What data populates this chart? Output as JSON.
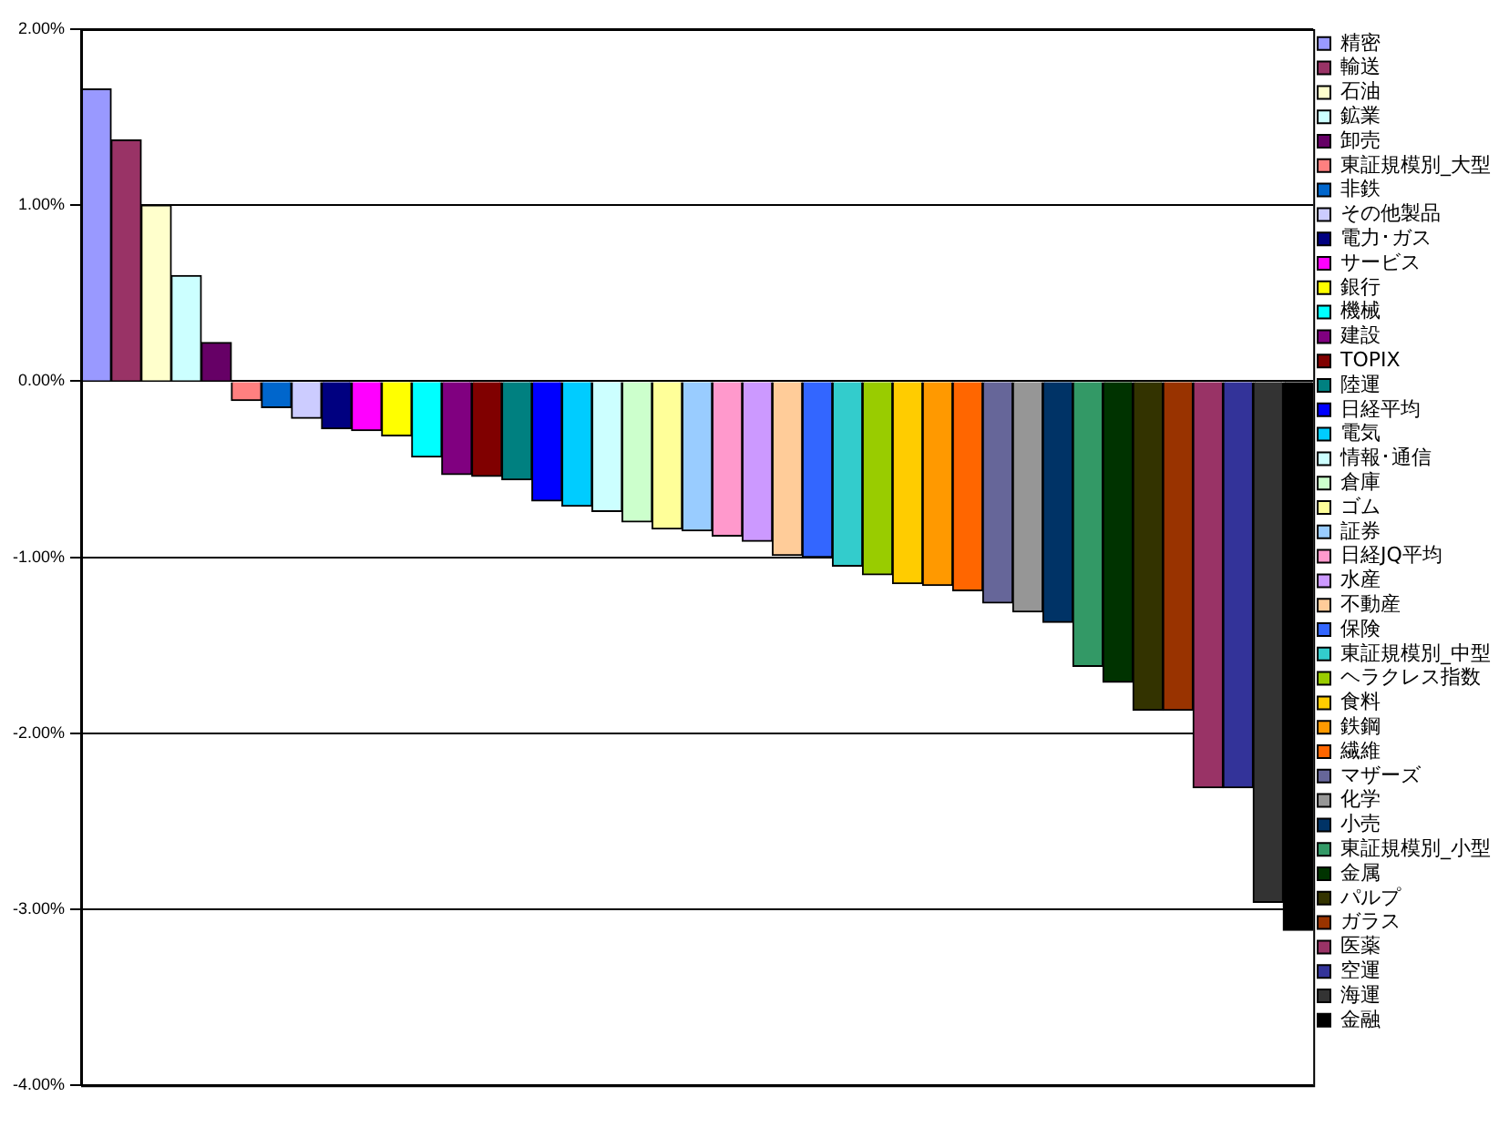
{
  "chart_data": {
    "type": "bar",
    "categories": [
      null,
      null,
      null,
      null,
      null,
      null,
      null,
      null,
      null,
      null,
      null,
      null,
      null,
      null,
      null,
      null,
      null,
      null,
      null,
      null,
      null,
      null,
      null,
      null,
      null,
      null,
      null,
      null,
      null,
      null,
      null,
      null,
      null,
      null,
      null,
      null,
      null,
      null,
      null,
      null,
      null
    ],
    "ylim": [
      -4,
      2
    ],
    "yticks": [
      {
        "value": -4,
        "label": "-4.00%"
      },
      {
        "value": -3,
        "label": "-3.00%"
      },
      {
        "value": -2,
        "label": "-2.00%"
      },
      {
        "value": -1,
        "label": "-1.00%"
      },
      {
        "value": 0,
        "label": "0.00%"
      },
      {
        "value": 1,
        "label": "1.00%"
      },
      {
        "value": 2,
        "label": "2.00%"
      }
    ],
    "grid": "y",
    "legend": "right",
    "series": [
      {
        "name": "精密",
        "color": "#9999ff",
        "values": [
          1.66,
          null,
          null,
          null,
          null,
          null,
          null,
          null,
          null,
          null,
          null,
          null,
          null,
          null,
          null,
          null,
          null,
          null,
          null,
          null,
          null,
          null,
          null,
          null,
          null,
          null,
          null,
          null,
          null,
          null,
          null,
          null,
          null,
          null,
          null,
          null,
          null,
          null,
          null,
          null,
          null
        ]
      },
      {
        "name": "輸送",
        "color": "#993366",
        "values": [
          null,
          1.37,
          null,
          null,
          null,
          null,
          null,
          null,
          null,
          null,
          null,
          null,
          null,
          null,
          null,
          null,
          null,
          null,
          null,
          null,
          null,
          null,
          null,
          null,
          null,
          null,
          null,
          null,
          null,
          null,
          null,
          null,
          null,
          null,
          null,
          null,
          null,
          null,
          null,
          null,
          null
        ]
      },
      {
        "name": "石油",
        "color": "#ffffcc",
        "values": [
          null,
          null,
          1.0,
          null,
          null,
          null,
          null,
          null,
          null,
          null,
          null,
          null,
          null,
          null,
          null,
          null,
          null,
          null,
          null,
          null,
          null,
          null,
          null,
          null,
          null,
          null,
          null,
          null,
          null,
          null,
          null,
          null,
          null,
          null,
          null,
          null,
          null,
          null,
          null,
          null,
          null
        ]
      },
      {
        "name": "鉱業",
        "color": "#ccffff",
        "values": [
          null,
          null,
          null,
          0.6,
          null,
          null,
          null,
          null,
          null,
          null,
          null,
          null,
          null,
          null,
          null,
          null,
          null,
          null,
          null,
          null,
          null,
          null,
          null,
          null,
          null,
          null,
          null,
          null,
          null,
          null,
          null,
          null,
          null,
          null,
          null,
          null,
          null,
          null,
          null,
          null,
          null
        ]
      },
      {
        "name": "卸売",
        "color": "#660066",
        "values": [
          null,
          null,
          null,
          null,
          0.22,
          null,
          null,
          null,
          null,
          null,
          null,
          null,
          null,
          null,
          null,
          null,
          null,
          null,
          null,
          null,
          null,
          null,
          null,
          null,
          null,
          null,
          null,
          null,
          null,
          null,
          null,
          null,
          null,
          null,
          null,
          null,
          null,
          null,
          null,
          null,
          null
        ]
      },
      {
        "name": "東証規模別_大型",
        "color": "#ff8080",
        "values": [
          null,
          null,
          null,
          null,
          null,
          -0.11,
          null,
          null,
          null,
          null,
          null,
          null,
          null,
          null,
          null,
          null,
          null,
          null,
          null,
          null,
          null,
          null,
          null,
          null,
          null,
          null,
          null,
          null,
          null,
          null,
          null,
          null,
          null,
          null,
          null,
          null,
          null,
          null,
          null,
          null,
          null
        ]
      },
      {
        "name": "非鉄",
        "color": "#0066cc",
        "values": [
          null,
          null,
          null,
          null,
          null,
          null,
          -0.15,
          null,
          null,
          null,
          null,
          null,
          null,
          null,
          null,
          null,
          null,
          null,
          null,
          null,
          null,
          null,
          null,
          null,
          null,
          null,
          null,
          null,
          null,
          null,
          null,
          null,
          null,
          null,
          null,
          null,
          null,
          null,
          null,
          null,
          null
        ]
      },
      {
        "name": "その他製品",
        "color": "#ccccff",
        "values": [
          null,
          null,
          null,
          null,
          null,
          null,
          null,
          -0.21,
          null,
          null,
          null,
          null,
          null,
          null,
          null,
          null,
          null,
          null,
          null,
          null,
          null,
          null,
          null,
          null,
          null,
          null,
          null,
          null,
          null,
          null,
          null,
          null,
          null,
          null,
          null,
          null,
          null,
          null,
          null,
          null,
          null
        ]
      },
      {
        "name": "電力･ガス",
        "color": "#000080",
        "values": [
          null,
          null,
          null,
          null,
          null,
          null,
          null,
          null,
          -0.27,
          null,
          null,
          null,
          null,
          null,
          null,
          null,
          null,
          null,
          null,
          null,
          null,
          null,
          null,
          null,
          null,
          null,
          null,
          null,
          null,
          null,
          null,
          null,
          null,
          null,
          null,
          null,
          null,
          null,
          null,
          null,
          null
        ]
      },
      {
        "name": "サービス",
        "color": "#ff00ff",
        "values": [
          null,
          null,
          null,
          null,
          null,
          null,
          null,
          null,
          null,
          -0.28,
          null,
          null,
          null,
          null,
          null,
          null,
          null,
          null,
          null,
          null,
          null,
          null,
          null,
          null,
          null,
          null,
          null,
          null,
          null,
          null,
          null,
          null,
          null,
          null,
          null,
          null,
          null,
          null,
          null,
          null,
          null
        ]
      },
      {
        "name": "銀行",
        "color": "#ffff00",
        "values": [
          null,
          null,
          null,
          null,
          null,
          null,
          null,
          null,
          null,
          null,
          -0.31,
          null,
          null,
          null,
          null,
          null,
          null,
          null,
          null,
          null,
          null,
          null,
          null,
          null,
          null,
          null,
          null,
          null,
          null,
          null,
          null,
          null,
          null,
          null,
          null,
          null,
          null,
          null,
          null,
          null,
          null
        ]
      },
      {
        "name": "機械",
        "color": "#00ffff",
        "values": [
          null,
          null,
          null,
          null,
          null,
          null,
          null,
          null,
          null,
          null,
          null,
          -0.43,
          null,
          null,
          null,
          null,
          null,
          null,
          null,
          null,
          null,
          null,
          null,
          null,
          null,
          null,
          null,
          null,
          null,
          null,
          null,
          null,
          null,
          null,
          null,
          null,
          null,
          null,
          null,
          null,
          null
        ]
      },
      {
        "name": "建設",
        "color": "#800080",
        "values": [
          null,
          null,
          null,
          null,
          null,
          null,
          null,
          null,
          null,
          null,
          null,
          null,
          -0.53,
          null,
          null,
          null,
          null,
          null,
          null,
          null,
          null,
          null,
          null,
          null,
          null,
          null,
          null,
          null,
          null,
          null,
          null,
          null,
          null,
          null,
          null,
          null,
          null,
          null,
          null,
          null,
          null
        ]
      },
      {
        "name": "TOPIX",
        "color": "#800000",
        "values": [
          null,
          null,
          null,
          null,
          null,
          null,
          null,
          null,
          null,
          null,
          null,
          null,
          null,
          -0.54,
          null,
          null,
          null,
          null,
          null,
          null,
          null,
          null,
          null,
          null,
          null,
          null,
          null,
          null,
          null,
          null,
          null,
          null,
          null,
          null,
          null,
          null,
          null,
          null,
          null,
          null,
          null
        ]
      },
      {
        "name": "陸運",
        "color": "#008080",
        "values": [
          null,
          null,
          null,
          null,
          null,
          null,
          null,
          null,
          null,
          null,
          null,
          null,
          null,
          null,
          -0.56,
          null,
          null,
          null,
          null,
          null,
          null,
          null,
          null,
          null,
          null,
          null,
          null,
          null,
          null,
          null,
          null,
          null,
          null,
          null,
          null,
          null,
          null,
          null,
          null,
          null,
          null
        ]
      },
      {
        "name": "日経平均",
        "color": "#0000ff",
        "values": [
          null,
          null,
          null,
          null,
          null,
          null,
          null,
          null,
          null,
          null,
          null,
          null,
          null,
          null,
          null,
          -0.68,
          null,
          null,
          null,
          null,
          null,
          null,
          null,
          null,
          null,
          null,
          null,
          null,
          null,
          null,
          null,
          null,
          null,
          null,
          null,
          null,
          null,
          null,
          null,
          null,
          null
        ]
      },
      {
        "name": "電気",
        "color": "#00ccff",
        "values": [
          null,
          null,
          null,
          null,
          null,
          null,
          null,
          null,
          null,
          null,
          null,
          null,
          null,
          null,
          null,
          null,
          -0.71,
          null,
          null,
          null,
          null,
          null,
          null,
          null,
          null,
          null,
          null,
          null,
          null,
          null,
          null,
          null,
          null,
          null,
          null,
          null,
          null,
          null,
          null,
          null,
          null
        ]
      },
      {
        "name": "情報･通信",
        "color": "#ccffff",
        "values": [
          null,
          null,
          null,
          null,
          null,
          null,
          null,
          null,
          null,
          null,
          null,
          null,
          null,
          null,
          null,
          null,
          null,
          -0.74,
          null,
          null,
          null,
          null,
          null,
          null,
          null,
          null,
          null,
          null,
          null,
          null,
          null,
          null,
          null,
          null,
          null,
          null,
          null,
          null,
          null,
          null,
          null
        ]
      },
      {
        "name": "倉庫",
        "color": "#ccffcc",
        "values": [
          null,
          null,
          null,
          null,
          null,
          null,
          null,
          null,
          null,
          null,
          null,
          null,
          null,
          null,
          null,
          null,
          null,
          null,
          -0.8,
          null,
          null,
          null,
          null,
          null,
          null,
          null,
          null,
          null,
          null,
          null,
          null,
          null,
          null,
          null,
          null,
          null,
          null,
          null,
          null,
          null,
          null
        ]
      },
      {
        "name": "ゴム",
        "color": "#ffff99",
        "values": [
          null,
          null,
          null,
          null,
          null,
          null,
          null,
          null,
          null,
          null,
          null,
          null,
          null,
          null,
          null,
          null,
          null,
          null,
          null,
          -0.84,
          null,
          null,
          null,
          null,
          null,
          null,
          null,
          null,
          null,
          null,
          null,
          null,
          null,
          null,
          null,
          null,
          null,
          null,
          null,
          null,
          null
        ]
      },
      {
        "name": "証券",
        "color": "#99ccff",
        "values": [
          null,
          null,
          null,
          null,
          null,
          null,
          null,
          null,
          null,
          null,
          null,
          null,
          null,
          null,
          null,
          null,
          null,
          null,
          null,
          null,
          -0.85,
          null,
          null,
          null,
          null,
          null,
          null,
          null,
          null,
          null,
          null,
          null,
          null,
          null,
          null,
          null,
          null,
          null,
          null,
          null,
          null
        ]
      },
      {
        "name": "日経JQ平均",
        "color": "#ff99cc",
        "values": [
          null,
          null,
          null,
          null,
          null,
          null,
          null,
          null,
          null,
          null,
          null,
          null,
          null,
          null,
          null,
          null,
          null,
          null,
          null,
          null,
          null,
          -0.88,
          null,
          null,
          null,
          null,
          null,
          null,
          null,
          null,
          null,
          null,
          null,
          null,
          null,
          null,
          null,
          null,
          null,
          null,
          null
        ]
      },
      {
        "name": "水産",
        "color": "#cc99ff",
        "values": [
          null,
          null,
          null,
          null,
          null,
          null,
          null,
          null,
          null,
          null,
          null,
          null,
          null,
          null,
          null,
          null,
          null,
          null,
          null,
          null,
          null,
          null,
          -0.91,
          null,
          null,
          null,
          null,
          null,
          null,
          null,
          null,
          null,
          null,
          null,
          null,
          null,
          null,
          null,
          null,
          null,
          null
        ]
      },
      {
        "name": "不動産",
        "color": "#ffcc99",
        "values": [
          null,
          null,
          null,
          null,
          null,
          null,
          null,
          null,
          null,
          null,
          null,
          null,
          null,
          null,
          null,
          null,
          null,
          null,
          null,
          null,
          null,
          null,
          null,
          -0.99,
          null,
          null,
          null,
          null,
          null,
          null,
          null,
          null,
          null,
          null,
          null,
          null,
          null,
          null,
          null,
          null,
          null
        ]
      },
      {
        "name": "保険",
        "color": "#3366ff",
        "values": [
          null,
          null,
          null,
          null,
          null,
          null,
          null,
          null,
          null,
          null,
          null,
          null,
          null,
          null,
          null,
          null,
          null,
          null,
          null,
          null,
          null,
          null,
          null,
          null,
          -1.0,
          null,
          null,
          null,
          null,
          null,
          null,
          null,
          null,
          null,
          null,
          null,
          null,
          null,
          null,
          null,
          null
        ]
      },
      {
        "name": "東証規模別_中型",
        "color": "#33cccc",
        "values": [
          null,
          null,
          null,
          null,
          null,
          null,
          null,
          null,
          null,
          null,
          null,
          null,
          null,
          null,
          null,
          null,
          null,
          null,
          null,
          null,
          null,
          null,
          null,
          null,
          null,
          -1.05,
          null,
          null,
          null,
          null,
          null,
          null,
          null,
          null,
          null,
          null,
          null,
          null,
          null,
          null,
          null
        ]
      },
      {
        "name": "ヘラクレス指数",
        "color": "#99cc00",
        "values": [
          null,
          null,
          null,
          null,
          null,
          null,
          null,
          null,
          null,
          null,
          null,
          null,
          null,
          null,
          null,
          null,
          null,
          null,
          null,
          null,
          null,
          null,
          null,
          null,
          null,
          null,
          -1.1,
          null,
          null,
          null,
          null,
          null,
          null,
          null,
          null,
          null,
          null,
          null,
          null,
          null,
          null
        ]
      },
      {
        "name": "食料",
        "color": "#ffcc00",
        "values": [
          null,
          null,
          null,
          null,
          null,
          null,
          null,
          null,
          null,
          null,
          null,
          null,
          null,
          null,
          null,
          null,
          null,
          null,
          null,
          null,
          null,
          null,
          null,
          null,
          null,
          null,
          null,
          -1.15,
          null,
          null,
          null,
          null,
          null,
          null,
          null,
          null,
          null,
          null,
          null,
          null,
          null
        ]
      },
      {
        "name": "鉄鋼",
        "color": "#ff9900",
        "values": [
          null,
          null,
          null,
          null,
          null,
          null,
          null,
          null,
          null,
          null,
          null,
          null,
          null,
          null,
          null,
          null,
          null,
          null,
          null,
          null,
          null,
          null,
          null,
          null,
          null,
          null,
          null,
          null,
          -1.16,
          null,
          null,
          null,
          null,
          null,
          null,
          null,
          null,
          null,
          null,
          null,
          null
        ]
      },
      {
        "name": "繊維",
        "color": "#ff6600",
        "values": [
          null,
          null,
          null,
          null,
          null,
          null,
          null,
          null,
          null,
          null,
          null,
          null,
          null,
          null,
          null,
          null,
          null,
          null,
          null,
          null,
          null,
          null,
          null,
          null,
          null,
          null,
          null,
          null,
          null,
          -1.19,
          null,
          null,
          null,
          null,
          null,
          null,
          null,
          null,
          null,
          null,
          null
        ]
      },
      {
        "name": "マザーズ",
        "color": "#666699",
        "values": [
          null,
          null,
          null,
          null,
          null,
          null,
          null,
          null,
          null,
          null,
          null,
          null,
          null,
          null,
          null,
          null,
          null,
          null,
          null,
          null,
          null,
          null,
          null,
          null,
          null,
          null,
          null,
          null,
          null,
          null,
          -1.26,
          null,
          null,
          null,
          null,
          null,
          null,
          null,
          null,
          null,
          null
        ]
      },
      {
        "name": "化学",
        "color": "#969696",
        "values": [
          null,
          null,
          null,
          null,
          null,
          null,
          null,
          null,
          null,
          null,
          null,
          null,
          null,
          null,
          null,
          null,
          null,
          null,
          null,
          null,
          null,
          null,
          null,
          null,
          null,
          null,
          null,
          null,
          null,
          null,
          null,
          -1.31,
          null,
          null,
          null,
          null,
          null,
          null,
          null,
          null,
          null
        ]
      },
      {
        "name": "小売",
        "color": "#003366",
        "values": [
          null,
          null,
          null,
          null,
          null,
          null,
          null,
          null,
          null,
          null,
          null,
          null,
          null,
          null,
          null,
          null,
          null,
          null,
          null,
          null,
          null,
          null,
          null,
          null,
          null,
          null,
          null,
          null,
          null,
          null,
          null,
          null,
          -1.37,
          null,
          null,
          null,
          null,
          null,
          null,
          null,
          null
        ]
      },
      {
        "name": "東証規模別_小型",
        "color": "#339966",
        "values": [
          null,
          null,
          null,
          null,
          null,
          null,
          null,
          null,
          null,
          null,
          null,
          null,
          null,
          null,
          null,
          null,
          null,
          null,
          null,
          null,
          null,
          null,
          null,
          null,
          null,
          null,
          null,
          null,
          null,
          null,
          null,
          null,
          null,
          -1.62,
          null,
          null,
          null,
          null,
          null,
          null,
          null
        ]
      },
      {
        "name": "金属",
        "color": "#003300",
        "values": [
          null,
          null,
          null,
          null,
          null,
          null,
          null,
          null,
          null,
          null,
          null,
          null,
          null,
          null,
          null,
          null,
          null,
          null,
          null,
          null,
          null,
          null,
          null,
          null,
          null,
          null,
          null,
          null,
          null,
          null,
          null,
          null,
          null,
          null,
          -1.71,
          null,
          null,
          null,
          null,
          null,
          null
        ]
      },
      {
        "name": "パルプ",
        "color": "#333300",
        "values": [
          null,
          null,
          null,
          null,
          null,
          null,
          null,
          null,
          null,
          null,
          null,
          null,
          null,
          null,
          null,
          null,
          null,
          null,
          null,
          null,
          null,
          null,
          null,
          null,
          null,
          null,
          null,
          null,
          null,
          null,
          null,
          null,
          null,
          null,
          null,
          -1.87,
          null,
          null,
          null,
          null,
          null
        ]
      },
      {
        "name": "ガラス",
        "color": "#993300",
        "values": [
          null,
          null,
          null,
          null,
          null,
          null,
          null,
          null,
          null,
          null,
          null,
          null,
          null,
          null,
          null,
          null,
          null,
          null,
          null,
          null,
          null,
          null,
          null,
          null,
          null,
          null,
          null,
          null,
          null,
          null,
          null,
          null,
          null,
          null,
          null,
          null,
          -1.87,
          null,
          null,
          null,
          null
        ]
      },
      {
        "name": "医薬",
        "color": "#993366",
        "values": [
          null,
          null,
          null,
          null,
          null,
          null,
          null,
          null,
          null,
          null,
          null,
          null,
          null,
          null,
          null,
          null,
          null,
          null,
          null,
          null,
          null,
          null,
          null,
          null,
          null,
          null,
          null,
          null,
          null,
          null,
          null,
          null,
          null,
          null,
          null,
          null,
          null,
          -2.31,
          null,
          null,
          null
        ]
      },
      {
        "name": "空運",
        "color": "#333399",
        "values": [
          null,
          null,
          null,
          null,
          null,
          null,
          null,
          null,
          null,
          null,
          null,
          null,
          null,
          null,
          null,
          null,
          null,
          null,
          null,
          null,
          null,
          null,
          null,
          null,
          null,
          null,
          null,
          null,
          null,
          null,
          null,
          null,
          null,
          null,
          null,
          null,
          null,
          null,
          -2.31,
          null,
          null
        ]
      },
      {
        "name": "海運",
        "color": "#333333",
        "values": [
          null,
          null,
          null,
          null,
          null,
          null,
          null,
          null,
          null,
          null,
          null,
          null,
          null,
          null,
          null,
          null,
          null,
          null,
          null,
          null,
          null,
          null,
          null,
          null,
          null,
          null,
          null,
          null,
          null,
          null,
          null,
          null,
          null,
          null,
          null,
          null,
          null,
          null,
          null,
          -2.96,
          null
        ]
      },
      {
        "name": "金融",
        "color": "#000000",
        "values": [
          null,
          null,
          null,
          null,
          null,
          null,
          null,
          null,
          null,
          null,
          null,
          null,
          null,
          null,
          null,
          null,
          null,
          null,
          null,
          null,
          null,
          null,
          null,
          null,
          null,
          null,
          null,
          null,
          null,
          null,
          null,
          null,
          null,
          null,
          null,
          null,
          null,
          null,
          null,
          null,
          -3.12
        ]
      }
    ]
  }
}
